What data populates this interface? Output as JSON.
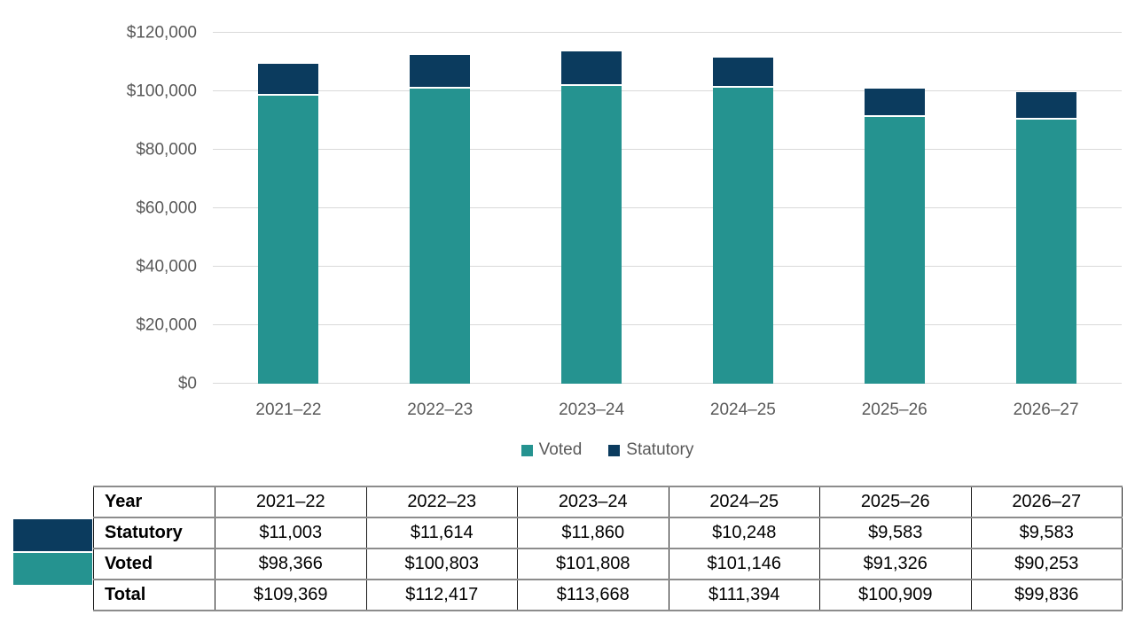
{
  "chart_data": {
    "type": "bar",
    "stacked": true,
    "title": "",
    "xlabel": "",
    "ylabel": "",
    "grid": true,
    "legend_position": "bottom",
    "categories": [
      "2021–22",
      "2022–23",
      "2023–24",
      "2024–25",
      "2025–26",
      "2026–27"
    ],
    "series": [
      {
        "name": "Voted",
        "color": "#259390",
        "values": [
          98366,
          100803,
          101808,
          101146,
          91326,
          90253
        ]
      },
      {
        "name": "Statutory",
        "color": "#0B3B5E",
        "values": [
          11003,
          11614,
          11860,
          10248,
          9583,
          9583
        ]
      }
    ],
    "totals": [
      109369,
      112417,
      113668,
      111394,
      100909,
      99836
    ],
    "ylim": [
      0,
      120000
    ],
    "yticks": [
      {
        "value": 0,
        "label": "$0"
      },
      {
        "value": 20000,
        "label": "$20,000"
      },
      {
        "value": 40000,
        "label": "$40,000"
      },
      {
        "value": 60000,
        "label": "$60,000"
      },
      {
        "value": 80000,
        "label": "$80,000"
      },
      {
        "value": 100000,
        "label": "$100,000"
      },
      {
        "value": 120000,
        "label": "$120,000"
      }
    ]
  },
  "colors": {
    "voted": "#259390",
    "statutory": "#0B3B5E",
    "gridline": "#d9d9d9",
    "axis_text": "#595959"
  },
  "table": {
    "header_label": "Year",
    "header_values": [
      "2021–22",
      "2022–23",
      "2023–24",
      "2024–25",
      "2025–26",
      "2026–27"
    ],
    "rows": [
      {
        "label": "Statutory",
        "swatch": "#0B3B5E",
        "values": [
          "$11,003",
          "$11,614",
          "$11,860",
          "$10,248",
          "$9,583",
          "$9,583"
        ]
      },
      {
        "label": "Voted",
        "swatch": "#259390",
        "values": [
          "$98,366",
          "$100,803",
          "$101,808",
          "$101,146",
          "$91,326",
          "$90,253"
        ]
      },
      {
        "label": "Total",
        "swatch": null,
        "values": [
          "$109,369",
          "$112,417",
          "$113,668",
          "$111,394",
          "$100,909",
          "$99,836"
        ]
      }
    ]
  }
}
